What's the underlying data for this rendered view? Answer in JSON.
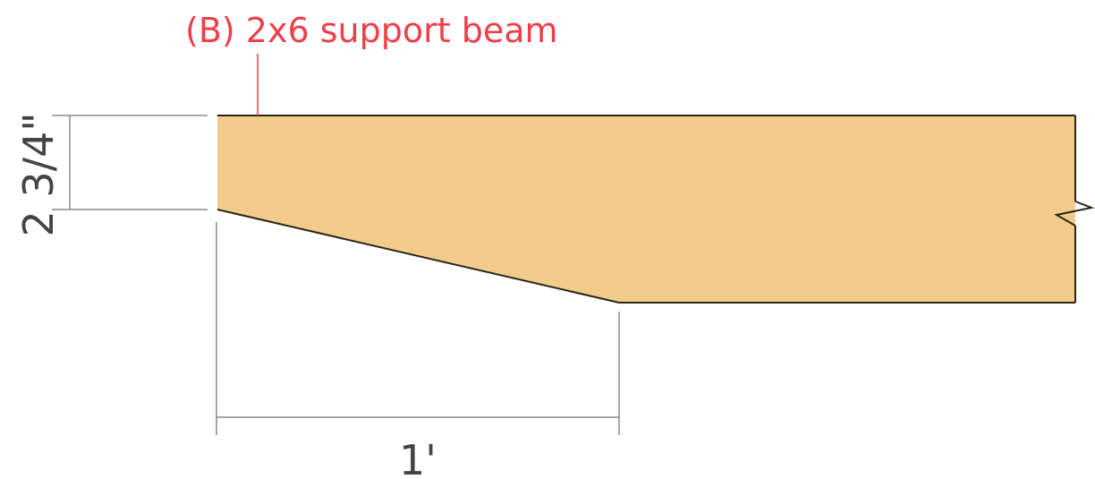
{
  "diagram": {
    "callout_label": "(B) 2x6 support beam",
    "height_dimension": "2 3/4\"",
    "length_dimension": "1'"
  },
  "colors": {
    "beam_fill": "#f2cc8b",
    "beam_outline": "#2a2418",
    "callout": "#ee3f4a",
    "dimension_lines": "#8a8a8a",
    "dimension_text": "#444444"
  }
}
